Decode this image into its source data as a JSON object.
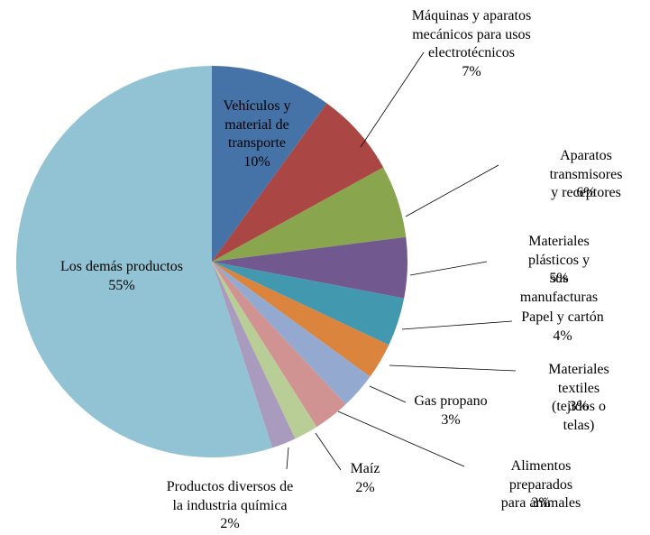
{
  "chart_data": {
    "type": "pie",
    "categories": [
      "Vehículos y\nmaterial de\ntransporte",
      "Máquinas y aparatos\nmecánicos para usos\nelectrotécnicos",
      "Aparatos transmisores\ny receptores",
      "Materiales plásticos y\nsus manufacturas",
      "Papel y cartón",
      "Materiales textiles\n(tejidos o telas)",
      "Gas propano",
      "Alimentos preparados\npara animales",
      "Maíz",
      "Productos diversos de\nla industria química",
      "Los demás productos"
    ],
    "values": [
      10,
      7,
      6,
      5,
      4,
      3,
      3,
      3,
      2,
      2,
      55
    ],
    "value_labels": [
      "10%",
      "7%",
      "6%",
      "5%",
      "4%",
      "3%",
      "3%",
      "3%",
      "2%",
      "2%",
      "55%"
    ],
    "colors": [
      "#4572A7",
      "#AA4643",
      "#89A54E",
      "#71588F",
      "#4198AF",
      "#DB843D",
      "#93A9CF",
      "#D19392",
      "#B9CD96",
      "#A99BBD",
      "#92C3D4"
    ]
  }
}
